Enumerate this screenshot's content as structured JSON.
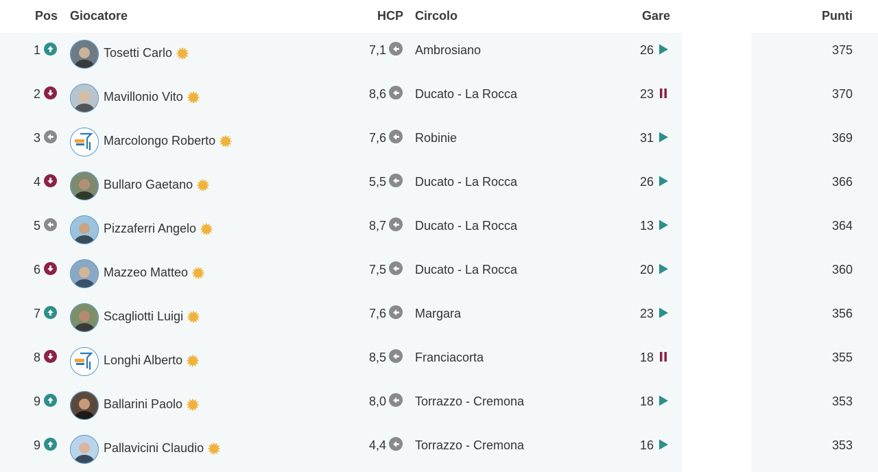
{
  "header": {
    "pos": "Pos",
    "player": "Giocatore",
    "hcp": "HCP",
    "club": "Circolo",
    "gare": "Gare",
    "punti": "Punti"
  },
  "colors": {
    "up": "#2e8f8b",
    "down": "#8b2346",
    "same": "#8a8a8a",
    "play": "#2e8f8b",
    "pause": "#8b2346",
    "star": "#f0b23a",
    "band": "#f4f8f9"
  },
  "rows": [
    {
      "pos": "1",
      "trend": "up",
      "name": "Tosetti Carlo",
      "avatar": "photo-avatar",
      "hcp": "7,1",
      "club": "Ambrosiano",
      "gare": "26",
      "status": "play-icon",
      "punti": "375"
    },
    {
      "pos": "2",
      "trend": "down",
      "name": "Mavillonio Vito",
      "avatar": "photo-avatar",
      "hcp": "8,6",
      "club": "Ducato - La Rocca",
      "gare": "23",
      "status": "pause-icon",
      "punti": "370"
    },
    {
      "pos": "3",
      "trend": "same",
      "name": "Marcolongo Roberto",
      "avatar": "logo-avatar",
      "hcp": "7,6",
      "club": "Robinie",
      "gare": "31",
      "status": "play-icon",
      "punti": "369"
    },
    {
      "pos": "4",
      "trend": "down",
      "name": "Bullaro Gaetano",
      "avatar": "photo-avatar",
      "hcp": "5,5",
      "club": "Ducato - La Rocca",
      "gare": "26",
      "status": "play-icon",
      "punti": "366"
    },
    {
      "pos": "5",
      "trend": "same",
      "name": "Pizzaferri Angelo",
      "avatar": "photo-avatar",
      "hcp": "8,7",
      "club": "Ducato - La Rocca",
      "gare": "13",
      "status": "play-icon",
      "punti": "364"
    },
    {
      "pos": "6",
      "trend": "down",
      "name": "Mazzeo Matteo",
      "avatar": "photo-avatar",
      "hcp": "7,5",
      "club": "Ducato - La Rocca",
      "gare": "20",
      "status": "play-icon",
      "punti": "360"
    },
    {
      "pos": "7",
      "trend": "up",
      "name": "Scagliotti Luigi",
      "avatar": "photo-avatar",
      "hcp": "7,6",
      "club": "Margara",
      "gare": "23",
      "status": "play-icon",
      "punti": "356"
    },
    {
      "pos": "8",
      "trend": "down",
      "name": "Longhi Alberto",
      "avatar": "logo-avatar",
      "hcp": "8,5",
      "club": "Franciacorta",
      "gare": "18",
      "status": "pause-icon",
      "punti": "355"
    },
    {
      "pos": "9",
      "trend": "up",
      "name": "Ballarini Paolo",
      "avatar": "photo-avatar",
      "hcp": "8,0",
      "club": "Torrazzo - Cremona",
      "gare": "18",
      "status": "play-icon",
      "punti": "353"
    },
    {
      "pos": "9",
      "trend": "up",
      "name": "Pallavicini Claudio",
      "avatar": "photo-avatar",
      "hcp": "4,4",
      "club": "Torrazzo - Cremona",
      "gare": "16",
      "status": "play-icon",
      "punti": "353"
    }
  ]
}
